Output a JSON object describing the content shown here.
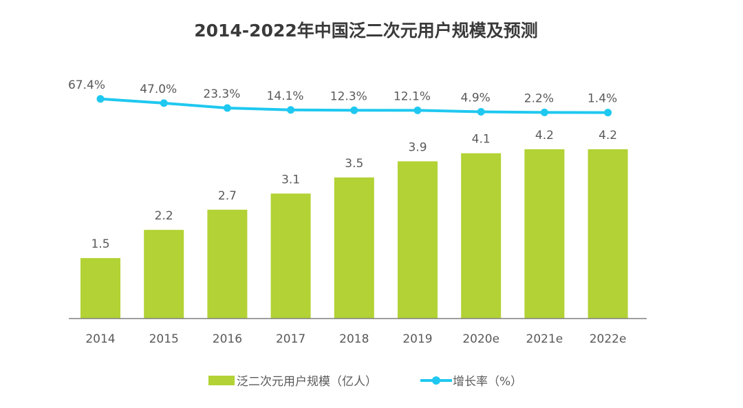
{
  "chart_data": {
    "type": "bar",
    "title": "2014-2022年中国泛二次元用户规模及预测",
    "xlabel": "",
    "ylabel": "",
    "categories": [
      "2014",
      "2015",
      "2016",
      "2017",
      "2018",
      "2019",
      "2020e",
      "2021e",
      "2022e"
    ],
    "series": [
      {
        "name": "泛二次元用户规模（亿人）",
        "type": "bar",
        "color": "#b2d235",
        "values": [
          1.5,
          2.2,
          2.7,
          3.1,
          3.5,
          3.9,
          4.1,
          4.2,
          4.2
        ],
        "labels": [
          "1.5",
          "2.2",
          "2.7",
          "3.1",
          "3.5",
          "3.9",
          "4.1",
          "4.2",
          "4.2"
        ]
      },
      {
        "name": "增长率（%）",
        "type": "line",
        "color": "#1fc8f0",
        "values": [
          67.4,
          47.0,
          23.3,
          14.1,
          12.3,
          12.1,
          4.9,
          2.2,
          1.4
        ],
        "labels": [
          "67.4%",
          "47.0%",
          "23.3%",
          "14.1%",
          "12.3%",
          "12.1%",
          "4.9%",
          "2.2%",
          "1.4%"
        ]
      }
    ],
    "ylim": [
      0,
      4.5
    ],
    "grid": false,
    "legend_position": "bottom"
  }
}
